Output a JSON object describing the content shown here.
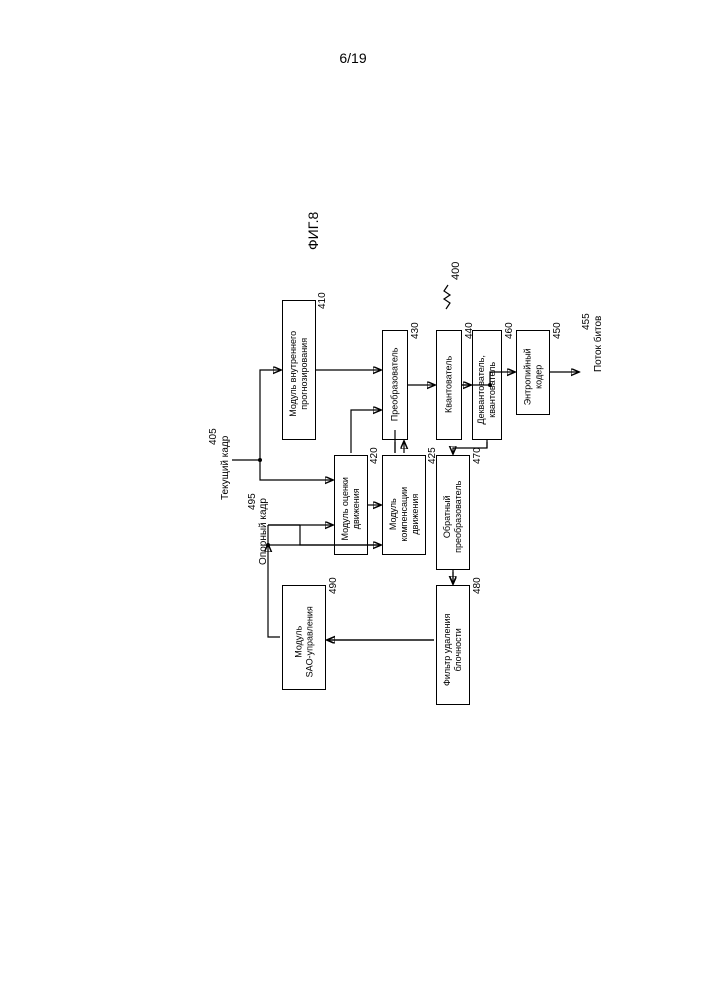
{
  "page_number": "6/19",
  "figure_label": "ФИГ.8",
  "diagram_ref": "400",
  "inputs": {
    "current_frame": {
      "num": "405",
      "label": "Текущий кадр"
    },
    "reference_frame": {
      "num": "495",
      "label": "Опорный кадр"
    }
  },
  "output": {
    "num": "455",
    "label": "Поток битов"
  },
  "nodes": {
    "intra_pred": {
      "num": "410",
      "label": "Модуль внутреннего\nпрогнозирования"
    },
    "motion_est": {
      "num": "420",
      "label": "Модуль оценки\nдвижения"
    },
    "motion_comp": {
      "num": "425",
      "label": "Модуль\nкомпенсации\nдвижения"
    },
    "transform": {
      "num": "430",
      "label": "Преобразователь"
    },
    "quantizer": {
      "num": "440",
      "label": "Квантователь"
    },
    "entropy": {
      "num": "450",
      "label": "Энтропийный\nкодер"
    },
    "dequant": {
      "num": "460",
      "label": "Деквантователь,\nквантователь"
    },
    "inv_trans": {
      "num": "470",
      "label": "Обратный\nпреобразователь"
    },
    "deblock": {
      "num": "480",
      "label": "Фильтр удаления\nблочности"
    },
    "sao": {
      "num": "490",
      "label": "Модуль\nSAO-управления"
    }
  },
  "colors": {
    "stroke": "#000000",
    "background": "#ffffff"
  }
}
